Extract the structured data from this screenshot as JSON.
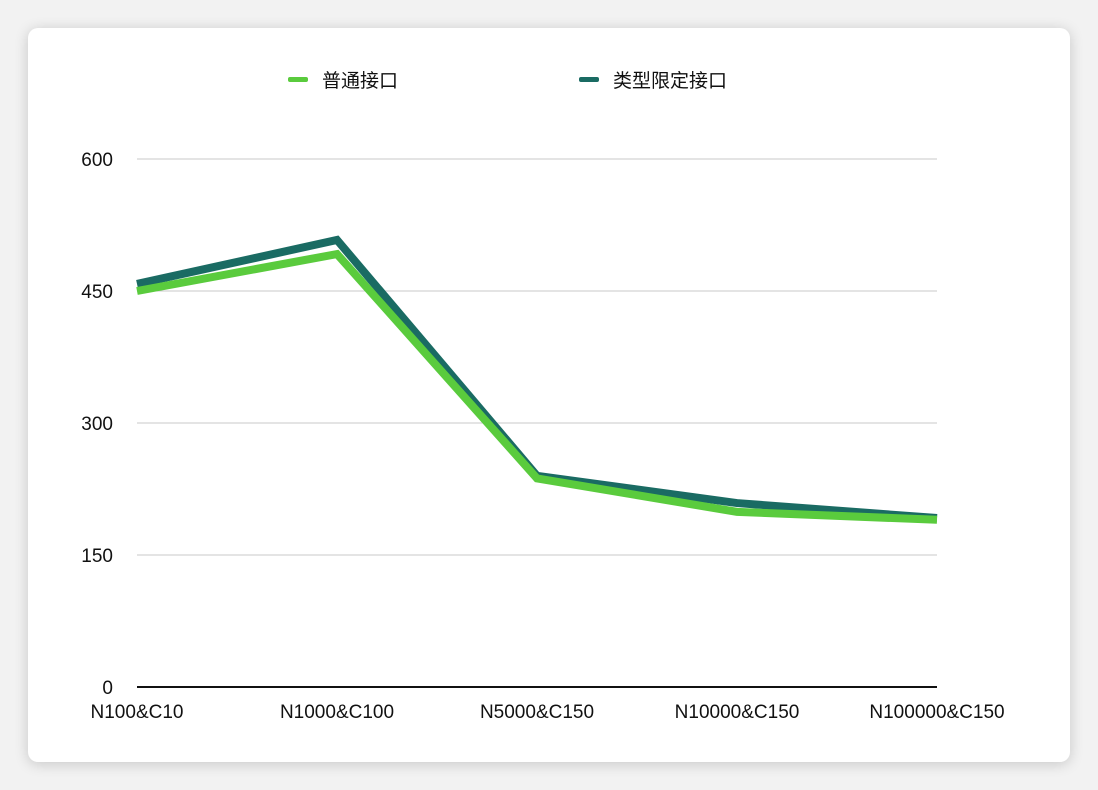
{
  "chart_data": {
    "type": "line",
    "categories": [
      "N100&C10",
      "N1000&C100",
      "N5000&C150",
      "N10000&C150",
      "N100000&C150"
    ],
    "series": [
      {
        "name": "普通接口",
        "values": [
          450,
          492,
          237,
          199,
          190
        ],
        "color": "#5acb3d"
      },
      {
        "name": "类型限定接口",
        "values": [
          458,
          508,
          240,
          209,
          192
        ],
        "color": "#1a6b63"
      }
    ],
    "ylim": [
      0,
      600
    ],
    "yticks": [
      0,
      150,
      300,
      450,
      600
    ],
    "grid": true,
    "legend_position": "top"
  }
}
